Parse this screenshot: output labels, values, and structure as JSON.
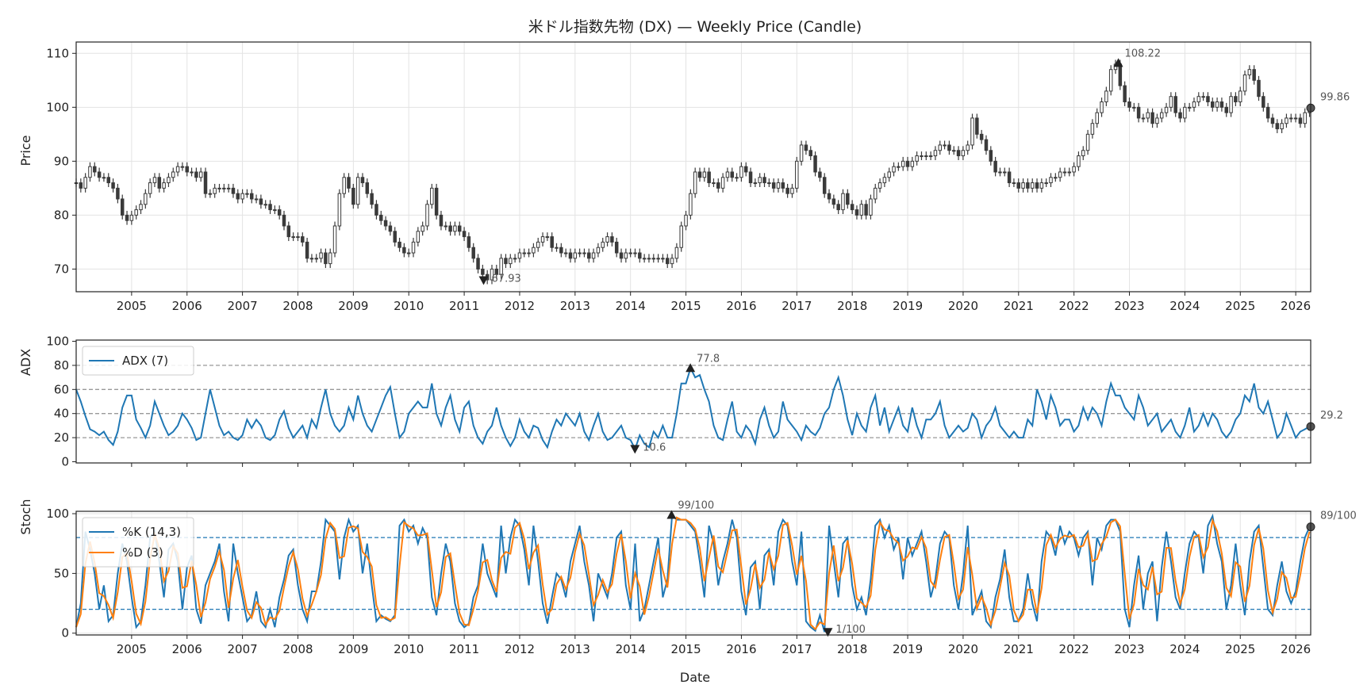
{
  "title": "米ドル指数先物 (DX) — Weekly Price (Candle)",
  "chart_data": [
    {
      "type": "candlestick",
      "panel": "price",
      "ylabel": "Price",
      "xlim": [
        2004.0,
        2026.27
      ],
      "ylim": [
        65.8,
        112.1
      ],
      "yticks": [
        70,
        80,
        90,
        100,
        110
      ],
      "xticks": [
        2005,
        2006,
        2007,
        2008,
        2009,
        2010,
        2011,
        2012,
        2013,
        2014,
        2015,
        2016,
        2017,
        2018,
        2019,
        2020,
        2021,
        2022,
        2023,
        2024,
        2025,
        2026
      ],
      "grid": true,
      "x_start": 2004.0,
      "x_step_years": 0.08333,
      "close_approx_monthly": [
        86,
        85,
        87,
        89,
        88,
        87,
        87,
        86,
        85,
        83,
        80,
        79,
        80,
        81,
        82,
        84,
        86,
        87,
        85,
        86,
        87,
        88,
        89,
        89,
        88,
        88,
        87,
        88,
        84,
        84,
        85,
        85,
        85,
        85,
        84,
        83,
        84,
        84,
        83,
        83,
        82,
        82,
        81,
        81,
        80,
        78,
        76,
        76,
        76,
        75,
        72,
        72,
        72,
        73,
        71,
        73,
        78,
        84,
        87,
        85,
        82,
        87,
        86,
        84,
        82,
        80,
        79,
        78,
        77,
        75,
        74,
        73,
        73,
        75,
        77,
        78,
        82,
        85,
        80,
        78,
        78,
        77,
        78,
        77,
        76,
        74,
        72,
        70,
        69,
        68,
        70,
        69,
        72,
        71,
        72,
        72,
        73,
        73,
        73,
        74,
        75,
        76,
        76,
        74,
        74,
        73,
        73,
        72,
        73,
        73,
        73,
        72,
        73,
        74,
        75,
        76,
        75,
        73,
        72,
        73,
        73,
        73,
        72,
        72,
        72,
        72,
        72,
        72,
        71,
        72,
        74,
        78,
        80,
        84,
        88,
        87,
        88,
        86,
        86,
        85,
        87,
        88,
        87,
        87,
        89,
        88,
        86,
        86,
        87,
        86,
        86,
        85,
        86,
        85,
        84,
        85,
        90,
        93,
        92,
        91,
        88,
        87,
        84,
        83,
        82,
        81,
        84,
        82,
        81,
        80,
        82,
        80,
        83,
        85,
        86,
        87,
        88,
        89,
        89,
        90,
        89,
        90,
        91,
        91,
        91,
        91,
        92,
        93,
        93,
        92,
        92,
        91,
        92,
        93,
        98,
        95,
        94,
        92,
        90,
        88,
        88,
        88,
        86,
        86,
        85,
        86,
        85,
        86,
        85,
        86,
        86,
        87,
        87,
        88,
        88,
        88,
        89,
        91,
        92,
        95,
        97,
        99,
        101,
        103,
        107,
        108,
        104,
        101,
        100,
        100,
        98,
        98,
        99,
        97,
        98,
        99,
        100,
        102,
        99,
        98,
        100,
        100,
        101,
        102,
        102,
        101,
        100,
        101,
        100,
        99,
        102,
        101,
        103,
        106,
        107,
        105,
        102,
        100,
        98,
        97,
        96,
        97,
        98,
        98,
        98,
        97,
        99,
        99.86
      ],
      "annotations": [
        {
          "label": "108.22",
          "x": 2022.8,
          "y": 108.22,
          "marker": "up"
        },
        {
          "label": "67.93",
          "x": 2011.35,
          "y": 67.93,
          "marker": "down"
        },
        {
          "label": "99.86",
          "x": 2026.25,
          "y": 99.86,
          "marker": "dot"
        }
      ]
    },
    {
      "type": "line",
      "panel": "adx",
      "ylabel": "ADX",
      "ylim": [
        -1,
        101
      ],
      "yticks": [
        0,
        20,
        40,
        60,
        80,
        100
      ],
      "hlines": [
        20,
        40,
        60,
        80
      ],
      "legend": "top-left",
      "series": [
        {
          "name": "ADX (7)",
          "color": "#1f77b4",
          "values": [
            60,
            50,
            38,
            27,
            25,
            22,
            25,
            18,
            14,
            25,
            45,
            55,
            55,
            35,
            28,
            20,
            30,
            50,
            40,
            30,
            22,
            25,
            30,
            40,
            35,
            28,
            18,
            20,
            40,
            60,
            45,
            30,
            22,
            25,
            20,
            18,
            22,
            35,
            28,
            35,
            30,
            20,
            18,
            22,
            35,
            42,
            28,
            20,
            25,
            30,
            20,
            35,
            28,
            45,
            60,
            40,
            30,
            25,
            30,
            45,
            35,
            55,
            40,
            30,
            25,
            35,
            45,
            55,
            62,
            40,
            20,
            25,
            40,
            45,
            50,
            45,
            45,
            65,
            40,
            30,
            45,
            55,
            35,
            25,
            45,
            50,
            30,
            20,
            15,
            25,
            30,
            45,
            30,
            20,
            13,
            20,
            35,
            25,
            20,
            30,
            28,
            18,
            12,
            25,
            35,
            30,
            40,
            35,
            30,
            40,
            25,
            18,
            30,
            40,
            25,
            18,
            20,
            25,
            30,
            20,
            18,
            10.6,
            22,
            15,
            12,
            25,
            20,
            30,
            20,
            20,
            40,
            65,
            65,
            77.8,
            70,
            72,
            60,
            50,
            30,
            20,
            18,
            35,
            50,
            25,
            20,
            30,
            25,
            15,
            35,
            45,
            30,
            20,
            25,
            50,
            35,
            30,
            25,
            18,
            30,
            25,
            22,
            28,
            40,
            45,
            60,
            70,
            55,
            35,
            22,
            40,
            30,
            25,
            45,
            55,
            30,
            45,
            25,
            35,
            45,
            30,
            25,
            45,
            30,
            20,
            35,
            35,
            40,
            50,
            30,
            20,
            25,
            30,
            25,
            28,
            40,
            35,
            20,
            30,
            35,
            45,
            30,
            25,
            20,
            25,
            20,
            20,
            35,
            30,
            60,
            50,
            35,
            55,
            45,
            30,
            35,
            35,
            25,
            30,
            45,
            35,
            45,
            40,
            30,
            50,
            65,
            55,
            55,
            45,
            40,
            35,
            55,
            45,
            30,
            35,
            40,
            25,
            30,
            35,
            25,
            20,
            30,
            45,
            25,
            30,
            40,
            30,
            40,
            35,
            25,
            20,
            25,
            35,
            40,
            55,
            50,
            65,
            45,
            40,
            50,
            35,
            20,
            25,
            40,
            30,
            20,
            25,
            27,
            29.2
          ]
        }
      ],
      "annotations": [
        {
          "label": "77.8",
          "x": 2015.08,
          "y": 77.8,
          "marker": "up"
        },
        {
          "label": "10.6",
          "x": 2014.08,
          "y": 10.6,
          "marker": "down"
        },
        {
          "label": "29.2",
          "x": 2026.25,
          "y": 29.2,
          "marker": "dot"
        }
      ]
    },
    {
      "type": "line",
      "panel": "stoch",
      "ylabel": "Stoch",
      "xlabel": "Date",
      "ylim": [
        -1.5,
        102
      ],
      "yticks": [
        0,
        50,
        100
      ],
      "hlines": [
        20,
        80
      ],
      "grid": true,
      "legend": "top-left",
      "series": [
        {
          "name": "%K (14,3)",
          "color": "#1f77b4",
          "values": [
            5,
            25,
            85,
            70,
            50,
            20,
            40,
            10,
            15,
            50,
            75,
            60,
            30,
            5,
            10,
            40,
            80,
            85,
            60,
            30,
            70,
            75,
            60,
            20,
            55,
            65,
            20,
            8,
            40,
            50,
            60,
            75,
            35,
            10,
            75,
            50,
            30,
            10,
            15,
            35,
            10,
            5,
            20,
            5,
            30,
            45,
            65,
            70,
            40,
            20,
            10,
            35,
            35,
            60,
            95,
            90,
            85,
            45,
            80,
            95,
            85,
            90,
            50,
            75,
            40,
            10,
            15,
            12,
            10,
            15,
            90,
            95,
            85,
            90,
            75,
            88,
            80,
            30,
            15,
            50,
            75,
            60,
            25,
            10,
            5,
            8,
            30,
            40,
            75,
            50,
            40,
            30,
            90,
            50,
            80,
            95,
            90,
            70,
            40,
            90,
            60,
            25,
            8,
            30,
            50,
            45,
            30,
            60,
            75,
            90,
            60,
            40,
            10,
            50,
            40,
            30,
            50,
            80,
            85,
            40,
            20,
            75,
            10,
            20,
            40,
            60,
            80,
            30,
            45,
            99,
            95,
            95,
            95,
            90,
            85,
            60,
            30,
            90,
            75,
            40,
            60,
            75,
            95,
            80,
            35,
            15,
            55,
            60,
            20,
            65,
            70,
            40,
            85,
            95,
            90,
            60,
            40,
            85,
            10,
            5,
            2,
            15,
            1,
            90,
            60,
            30,
            75,
            80,
            40,
            20,
            30,
            15,
            45,
            90,
            95,
            80,
            90,
            70,
            80,
            45,
            80,
            65,
            75,
            85,
            60,
            30,
            45,
            75,
            85,
            80,
            40,
            20,
            50,
            90,
            15,
            25,
            35,
            10,
            5,
            30,
            45,
            70,
            30,
            10,
            10,
            20,
            50,
            25,
            10,
            60,
            85,
            80,
            65,
            90,
            75,
            85,
            80,
            65,
            80,
            85,
            40,
            80,
            70,
            90,
            95,
            95,
            85,
            20,
            5,
            40,
            65,
            20,
            50,
            60,
            10,
            55,
            85,
            60,
            30,
            20,
            50,
            75,
            85,
            80,
            50,
            90,
            98,
            75,
            60,
            20,
            40,
            75,
            40,
            15,
            60,
            85,
            90,
            55,
            20,
            15,
            40,
            60,
            35,
            25,
            35,
            60,
            80,
            89
          ]
        },
        {
          "name": "%D (3)",
          "color": "#ff7f0e",
          "smoothing_of": "%K (14,3)"
        }
      ],
      "annotations": [
        {
          "label": "99/100",
          "x": 2014.74,
          "y": 99,
          "marker": "up"
        },
        {
          "label": "1/100",
          "x": 2017.56,
          "y": 1,
          "marker": "down"
        },
        {
          "label": "89/100",
          "x": 2026.25,
          "y": 89,
          "marker": "dot"
        }
      ]
    }
  ]
}
